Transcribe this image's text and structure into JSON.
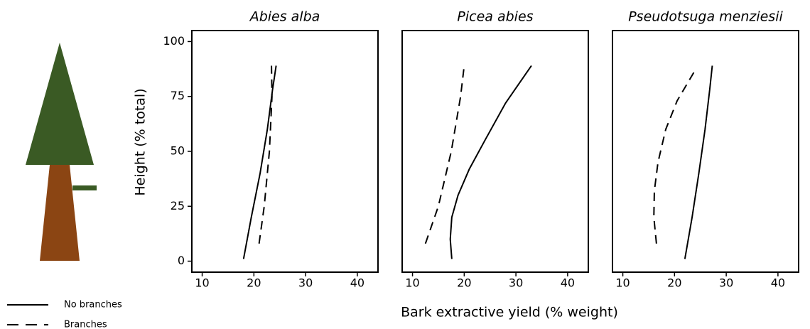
{
  "chart_data": [
    {
      "type": "line",
      "title": "Abies alba",
      "ylabel": "Height (% total)",
      "xlim": [
        8,
        44
      ],
      "ylim": [
        -5,
        105
      ],
      "xticks": [
        10,
        20,
        30,
        40
      ],
      "yticks": [
        0,
        25,
        50,
        75,
        100
      ],
      "series": [
        {
          "name": "No branches",
          "color": "#000000",
          "dash": false,
          "x": [
            18,
            19.5,
            21.2,
            22.6,
            23.6,
            24.3
          ],
          "values": [
            1,
            20,
            40,
            60,
            78,
            89
          ]
        },
        {
          "name": "Branches",
          "color": "#000000",
          "dash": true,
          "x": [
            21,
            22,
            23,
            23.5,
            23.4
          ],
          "values": [
            8,
            25,
            50,
            75,
            89
          ]
        }
      ]
    },
    {
      "type": "line",
      "title": "Picea abies",
      "xlabel": "Bark extractive yield (% weight)",
      "xlim": [
        8,
        44
      ],
      "ylim": [
        -5,
        105
      ],
      "xticks": [
        10,
        20,
        30,
        40
      ],
      "series": [
        {
          "name": "No branches",
          "color": "#000000",
          "dash": false,
          "x": [
            17.6,
            17.3,
            17.6,
            18.8,
            21,
            24,
            28,
            33
          ],
          "values": [
            1,
            10,
            20,
            30,
            42,
            55,
            72,
            89
          ]
        },
        {
          "name": "Branches",
          "color": "#000000",
          "dash": true,
          "x": [
            12.5,
            15,
            17.5,
            19.3,
            20
          ],
          "values": [
            8,
            25,
            50,
            75,
            89
          ]
        }
      ]
    },
    {
      "type": "line",
      "title": "Pseudotsuga menziesii",
      "xlim": [
        8,
        44
      ],
      "ylim": [
        -5,
        105
      ],
      "xticks": [
        10,
        20,
        30,
        40
      ],
      "series": [
        {
          "name": "No branches",
          "color": "#000000",
          "dash": false,
          "x": [
            22,
            23.4,
            24.7,
            25.9,
            26.8,
            27.3
          ],
          "values": [
            1,
            20,
            40,
            60,
            78,
            89
          ]
        },
        {
          "name": "Branches",
          "color": "#000000",
          "dash": true,
          "x": [
            16.5,
            16,
            16.1,
            16.8,
            18.3,
            20.5,
            24
          ],
          "values": [
            8,
            20,
            32,
            45,
            60,
            73,
            87
          ]
        }
      ]
    }
  ]
}
